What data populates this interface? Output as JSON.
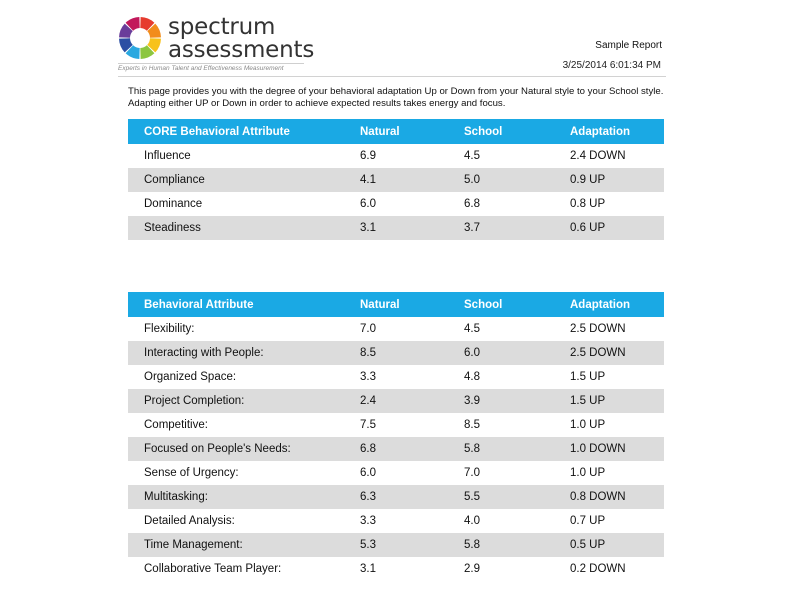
{
  "brand": {
    "line1": "spectrum",
    "line2": "assessments",
    "tagline": "Experts in Human Talent and Effectiveness Measurement",
    "ring_colors": [
      "#e63b2e",
      "#f28c1c",
      "#f7c21b",
      "#8cc63f",
      "#2aa8e0",
      "#2b4fa3",
      "#6a3d9a",
      "#c2185b"
    ]
  },
  "report": {
    "label": "Sample Report",
    "date": "3/25/2014 6:01:34 PM"
  },
  "intro": "This page provides you with the degree of your behavioral adaptation Up or Down from your Natural style to your School style. Adapting either UP or Down in order to achieve expected results takes energy and focus.",
  "core_table": {
    "headers": [
      "CORE Behavioral Attribute",
      "Natural",
      "School",
      "Adaptation"
    ],
    "rows": [
      {
        "attr": "Influence",
        "natural": "6.9",
        "school": "4.5",
        "adaptation": "2.4 DOWN"
      },
      {
        "attr": "Compliance",
        "natural": "4.1",
        "school": "5.0",
        "adaptation": "0.9 UP"
      },
      {
        "attr": "Dominance",
        "natural": "6.0",
        "school": "6.8",
        "adaptation": "0.8 UP"
      },
      {
        "attr": "Steadiness",
        "natural": "3.1",
        "school": "3.7",
        "adaptation": "0.6 UP"
      }
    ]
  },
  "behavior_table": {
    "headers": [
      "Behavioral Attribute",
      "Natural",
      "School",
      "Adaptation"
    ],
    "rows": [
      {
        "attr": "Flexibility:",
        "natural": "7.0",
        "school": "4.5",
        "adaptation": "2.5 DOWN"
      },
      {
        "attr": "Interacting with People:",
        "natural": "8.5",
        "school": "6.0",
        "adaptation": "2.5 DOWN"
      },
      {
        "attr": "Organized Space:",
        "natural": "3.3",
        "school": "4.8",
        "adaptation": "1.5 UP"
      },
      {
        "attr": "Project Completion:",
        "natural": "2.4",
        "school": "3.9",
        "adaptation": "1.5 UP"
      },
      {
        "attr": "Competitive:",
        "natural": "7.5",
        "school": "8.5",
        "adaptation": "1.0 UP"
      },
      {
        "attr": "Focused on People's Needs:",
        "natural": "6.8",
        "school": "5.8",
        "adaptation": "1.0 DOWN"
      },
      {
        "attr": "Sense of Urgency:",
        "natural": "6.0",
        "school": "7.0",
        "adaptation": "1.0 UP"
      },
      {
        "attr": "Multitasking:",
        "natural": "6.3",
        "school": "5.5",
        "adaptation": "0.8 DOWN"
      },
      {
        "attr": "Detailed Analysis:",
        "natural": "3.3",
        "school": "4.0",
        "adaptation": "0.7 UP"
      },
      {
        "attr": "Time Management:",
        "natural": "5.3",
        "school": "5.8",
        "adaptation": "0.5 UP"
      },
      {
        "attr": "Collaborative Team Player:",
        "natural": "3.1",
        "school": "2.9",
        "adaptation": "0.2 DOWN"
      }
    ]
  }
}
